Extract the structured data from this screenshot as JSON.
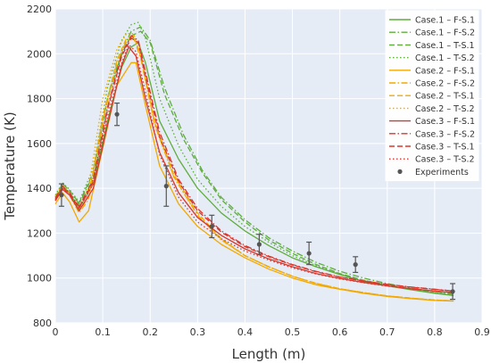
{
  "chart_data": {
    "type": "line",
    "title": "",
    "xlabel": "Length (m)",
    "ylabel": "Temperature (K)",
    "xlim": [
      0,
      0.9
    ],
    "ylim": [
      800,
      2200
    ],
    "xticks": [
      "0",
      "0.1",
      "0.2",
      "0.3",
      "0.4",
      "0.5",
      "0.6",
      "0.7",
      "0.8",
      "0.9"
    ],
    "yticks": [
      "800",
      "1000",
      "1200",
      "1400",
      "1600",
      "1800",
      "2000",
      "2200"
    ],
    "grid": true,
    "legend_position": "top-right",
    "series": [
      {
        "name": "Case.1 – F-S.1",
        "color": "#5fad3b",
        "dash": "solid",
        "x": [
          0,
          0.015,
          0.03,
          0.05,
          0.08,
          0.11,
          0.14,
          0.16,
          0.175,
          0.19,
          0.22,
          0.26,
          0.3,
          0.35,
          0.4,
          0.45,
          0.5,
          0.55,
          0.6,
          0.65,
          0.7,
          0.75,
          0.8,
          0.84
        ],
        "y": [
          1350,
          1410,
          1380,
          1310,
          1420,
          1700,
          1940,
          2030,
          2050,
          1960,
          1700,
          1530,
          1400,
          1290,
          1210,
          1145,
          1090,
          1050,
          1015,
          985,
          965,
          948,
          932,
          922
        ]
      },
      {
        "name": "Case.1 – F-S.2",
        "color": "#5fad3b",
        "dash": "dashdot",
        "x": [
          0,
          0.015,
          0.03,
          0.05,
          0.08,
          0.11,
          0.14,
          0.16,
          0.18,
          0.2,
          0.23,
          0.27,
          0.31,
          0.35,
          0.4,
          0.45,
          0.5,
          0.55,
          0.6,
          0.65,
          0.7,
          0.75,
          0.8,
          0.84
        ],
        "y": [
          1360,
          1420,
          1390,
          1330,
          1460,
          1800,
          2010,
          2100,
          2120,
          2060,
          1850,
          1640,
          1480,
          1360,
          1260,
          1180,
          1120,
          1070,
          1030,
          1000,
          975,
          955,
          940,
          930
        ]
      },
      {
        "name": "Case.1 – T-S.1",
        "color": "#5fad3b",
        "dash": "dash",
        "x": [
          0,
          0.015,
          0.03,
          0.05,
          0.08,
          0.11,
          0.14,
          0.16,
          0.18,
          0.2,
          0.23,
          0.27,
          0.31,
          0.35,
          0.4,
          0.45,
          0.5,
          0.55,
          0.6,
          0.65,
          0.7,
          0.75,
          0.8,
          0.84
        ],
        "y": [
          1360,
          1420,
          1390,
          1335,
          1470,
          1800,
          2000,
          2080,
          2100,
          2050,
          1820,
          1620,
          1470,
          1350,
          1250,
          1170,
          1110,
          1060,
          1020,
          990,
          968,
          950,
          935,
          925
        ]
      },
      {
        "name": "Case.1 – T-S.2",
        "color": "#5fad3b",
        "dash": "dot",
        "x": [
          0,
          0.015,
          0.03,
          0.05,
          0.08,
          0.11,
          0.14,
          0.16,
          0.175,
          0.19,
          0.22,
          0.26,
          0.3,
          0.35,
          0.4,
          0.45,
          0.5,
          0.55,
          0.6,
          0.65,
          0.7,
          0.75,
          0.8,
          0.84
        ],
        "y": [
          1370,
          1425,
          1395,
          1340,
          1490,
          1850,
          2060,
          2130,
          2140,
          2070,
          1800,
          1590,
          1440,
          1320,
          1230,
          1160,
          1100,
          1055,
          1018,
          990,
          968,
          950,
          935,
          925
        ]
      },
      {
        "name": "Case.2 – F-S.1",
        "color": "#f2a900",
        "dash": "solid",
        "x": [
          0,
          0.015,
          0.03,
          0.05,
          0.07,
          0.1,
          0.13,
          0.16,
          0.17,
          0.19,
          0.22,
          0.26,
          0.3,
          0.35,
          0.4,
          0.45,
          0.5,
          0.55,
          0.6,
          0.65,
          0.7,
          0.75,
          0.8,
          0.84
        ],
        "y": [
          1330,
          1380,
          1340,
          1250,
          1300,
          1580,
          1860,
          1960,
          1960,
          1770,
          1500,
          1330,
          1230,
          1150,
          1090,
          1040,
          1000,
          970,
          950,
          932,
          918,
          908,
          900,
          897
        ]
      },
      {
        "name": "Case.2 – F-S.2",
        "color": "#f2a900",
        "dash": "dashdot",
        "x": [
          0,
          0.015,
          0.03,
          0.05,
          0.07,
          0.1,
          0.13,
          0.15,
          0.165,
          0.18,
          0.21,
          0.25,
          0.3,
          0.35,
          0.4,
          0.45,
          0.5,
          0.55,
          0.6,
          0.65,
          0.7,
          0.75,
          0.8,
          0.84
        ],
        "y": [
          1350,
          1400,
          1370,
          1290,
          1350,
          1700,
          1960,
          2060,
          2070,
          1980,
          1680,
          1450,
          1280,
          1170,
          1100,
          1050,
          1008,
          976,
          952,
          935,
          920,
          910,
          902,
          898
        ]
      },
      {
        "name": "Case.2 – T-S.1",
        "color": "#f2a900",
        "dash": "dash",
        "x": [
          0,
          0.015,
          0.03,
          0.05,
          0.07,
          0.1,
          0.13,
          0.15,
          0.165,
          0.18,
          0.21,
          0.25,
          0.3,
          0.35,
          0.4,
          0.45,
          0.5,
          0.55,
          0.6,
          0.65,
          0.7,
          0.75,
          0.8,
          0.84
        ],
        "y": [
          1355,
          1405,
          1375,
          1300,
          1360,
          1720,
          1970,
          2070,
          2080,
          1990,
          1690,
          1460,
          1290,
          1175,
          1100,
          1050,
          1008,
          976,
          952,
          935,
          920,
          910,
          902,
          898
        ]
      },
      {
        "name": "Case.2 – T-S.2",
        "color": "#f2a900",
        "dash": "dot",
        "x": [
          0,
          0.015,
          0.03,
          0.05,
          0.07,
          0.1,
          0.13,
          0.15,
          0.165,
          0.18,
          0.21,
          0.25,
          0.3,
          0.35,
          0.4,
          0.45,
          0.5,
          0.55,
          0.6,
          0.65,
          0.7,
          0.75,
          0.8,
          0.84
        ],
        "y": [
          1365,
          1415,
          1385,
          1315,
          1400,
          1800,
          2020,
          2090,
          2090,
          1990,
          1680,
          1450,
          1280,
          1170,
          1100,
          1050,
          1008,
          976,
          952,
          935,
          920,
          910,
          902,
          898
        ]
      },
      {
        "name": "Case.3 – F-S.1",
        "color": "#d9372b",
        "dash": "solid",
        "x": [
          0,
          0.015,
          0.03,
          0.05,
          0.08,
          0.11,
          0.14,
          0.155,
          0.17,
          0.19,
          0.22,
          0.26,
          0.3,
          0.35,
          0.4,
          0.45,
          0.5,
          0.55,
          0.6,
          0.65,
          0.7,
          0.75,
          0.8,
          0.84
        ],
        "y": [
          1345,
          1395,
          1370,
          1300,
          1400,
          1680,
          1950,
          2030,
          1990,
          1800,
          1560,
          1380,
          1270,
          1190,
          1130,
          1085,
          1050,
          1020,
          998,
          980,
          965,
          952,
          942,
          935
        ]
      },
      {
        "name": "Case.3 – F-S.2",
        "color": "#d9372b",
        "dash": "dashdot",
        "x": [
          0,
          0.015,
          0.03,
          0.05,
          0.08,
          0.11,
          0.14,
          0.16,
          0.175,
          0.19,
          0.22,
          0.26,
          0.3,
          0.35,
          0.4,
          0.45,
          0.5,
          0.55,
          0.6,
          0.65,
          0.7,
          0.75,
          0.8,
          0.84
        ],
        "y": [
          1355,
          1410,
          1380,
          1320,
          1440,
          1760,
          2000,
          2080,
          2060,
          1920,
          1650,
          1440,
          1310,
          1210,
          1145,
          1098,
          1060,
          1030,
          1005,
          987,
          972,
          960,
          950,
          942
        ]
      },
      {
        "name": "Case.3 – T-S.1",
        "color": "#d9372b",
        "dash": "dash",
        "x": [
          0,
          0.015,
          0.03,
          0.05,
          0.08,
          0.11,
          0.14,
          0.16,
          0.175,
          0.19,
          0.22,
          0.26,
          0.3,
          0.35,
          0.4,
          0.45,
          0.5,
          0.55,
          0.6,
          0.65,
          0.7,
          0.75,
          0.8,
          0.84
        ],
        "y": [
          1350,
          1405,
          1375,
          1315,
          1430,
          1750,
          1990,
          2070,
          2050,
          1900,
          1630,
          1430,
          1300,
          1205,
          1140,
          1095,
          1058,
          1028,
          1004,
          986,
          971,
          959,
          949,
          941
        ]
      },
      {
        "name": "Case.3 – T-S.2",
        "color": "#d9372b",
        "dash": "dot",
        "x": [
          0,
          0.015,
          0.03,
          0.05,
          0.08,
          0.11,
          0.14,
          0.155,
          0.17,
          0.19,
          0.22,
          0.26,
          0.3,
          0.35,
          0.4,
          0.45,
          0.5,
          0.55,
          0.6,
          0.65,
          0.7,
          0.75,
          0.8,
          0.84
        ],
        "y": [
          1345,
          1400,
          1370,
          1310,
          1420,
          1720,
          1960,
          2040,
          2010,
          1830,
          1550,
          1360,
          1250,
          1175,
          1120,
          1080,
          1045,
          1018,
          996,
          979,
          964,
          952,
          942,
          935
        ]
      }
    ],
    "experiments": {
      "name": "Experiments",
      "color": "#555555",
      "points": [
        {
          "x": 0.013,
          "y": 1370,
          "err": 50
        },
        {
          "x": 0.13,
          "y": 1730,
          "err": 50
        },
        {
          "x": 0.234,
          "y": 1410,
          "err": 90
        },
        {
          "x": 0.33,
          "y": 1230,
          "err": 50
        },
        {
          "x": 0.43,
          "y": 1150,
          "err": 45
        },
        {
          "x": 0.535,
          "y": 1110,
          "err": 50
        },
        {
          "x": 0.633,
          "y": 1060,
          "err": 35
        },
        {
          "x": 0.838,
          "y": 940,
          "err": 35
        }
      ]
    }
  }
}
